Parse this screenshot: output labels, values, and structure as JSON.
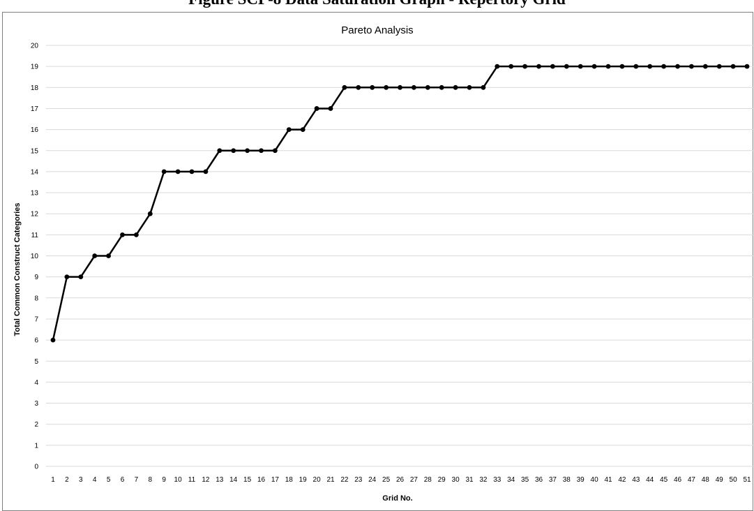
{
  "figure_caption": "Figure SCP-8 Data Saturation Graph - Repertory Grid",
  "chart_data": {
    "type": "line",
    "title": "Pareto Analysis",
    "xlabel": "Grid No.",
    "ylabel": "Total Common Construct Categories",
    "x": [
      1,
      2,
      3,
      4,
      5,
      6,
      7,
      8,
      9,
      10,
      11,
      12,
      13,
      14,
      15,
      16,
      17,
      18,
      19,
      20,
      21,
      22,
      23,
      24,
      25,
      26,
      27,
      28,
      29,
      30,
      31,
      32,
      33,
      34,
      35,
      36,
      37,
      38,
      39,
      40,
      41,
      42,
      43,
      44,
      45,
      46,
      47,
      48,
      49,
      50,
      51
    ],
    "values": [
      6,
      9,
      9,
      10,
      10,
      11,
      11,
      12,
      14,
      14,
      14,
      14,
      15,
      15,
      15,
      15,
      15,
      16,
      16,
      17,
      17,
      18,
      18,
      18,
      18,
      18,
      18,
      18,
      18,
      18,
      18,
      18,
      19,
      19,
      19,
      19,
      19,
      19,
      19,
      19,
      19,
      19,
      19,
      19,
      19,
      19,
      19,
      19,
      19,
      19,
      19
    ],
    "ylim": [
      0,
      20
    ],
    "yticks": [
      0,
      1,
      2,
      3,
      4,
      5,
      6,
      7,
      8,
      9,
      10,
      11,
      12,
      13,
      14,
      15,
      16,
      17,
      18,
      19,
      20
    ],
    "grid": true,
    "legend": "none",
    "line_color": "#000000",
    "grid_color": "#d9d9d9"
  }
}
